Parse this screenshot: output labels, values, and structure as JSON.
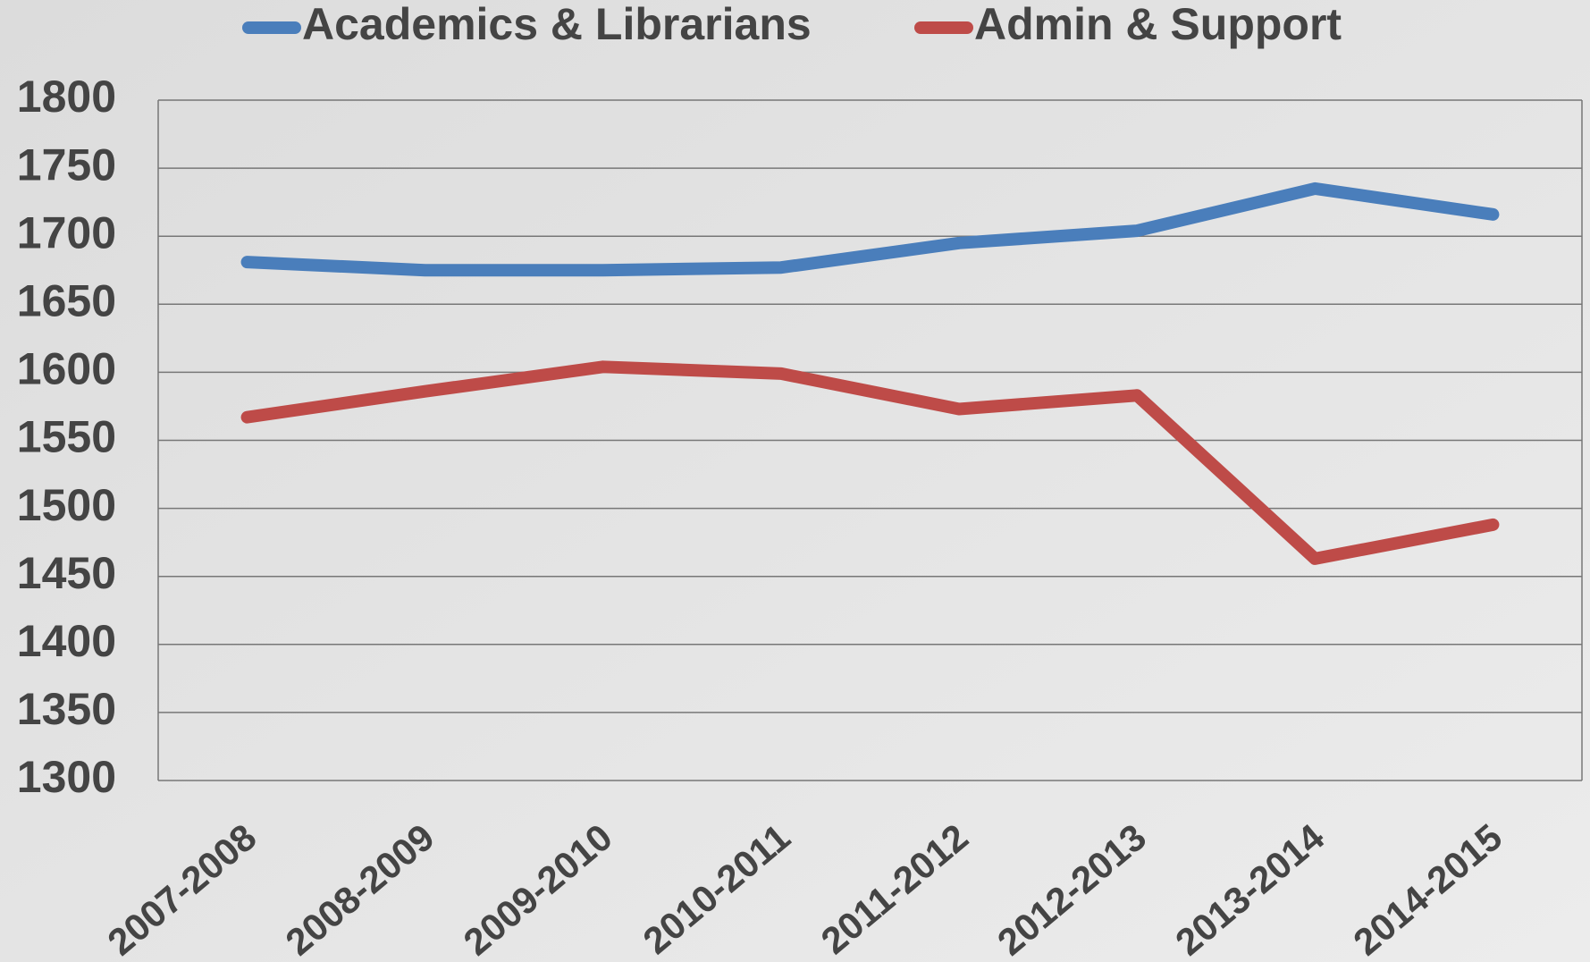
{
  "chart_data": {
    "type": "line",
    "categories": [
      "2007-2008",
      "2008-2009",
      "2009-2010",
      "2010-2011",
      "2011-2012",
      "2012-2013",
      "2013-2014",
      "2014-2015"
    ],
    "series": [
      {
        "name": "Academics & Librarians",
        "color": "#4a7ebb",
        "values": [
          1681,
          1675,
          1675,
          1677,
          1695,
          1704,
          1735,
          1716
        ]
      },
      {
        "name": "Admin & Support",
        "color": "#be4b48",
        "values": [
          1567,
          1586,
          1604,
          1599,
          1573,
          1583,
          1463,
          1488
        ]
      }
    ],
    "ylim": [
      1300,
      1800
    ],
    "yticks": [
      1300,
      1350,
      1400,
      1450,
      1500,
      1550,
      1600,
      1650,
      1700,
      1750,
      1800
    ],
    "grid": true,
    "legend": "top"
  }
}
